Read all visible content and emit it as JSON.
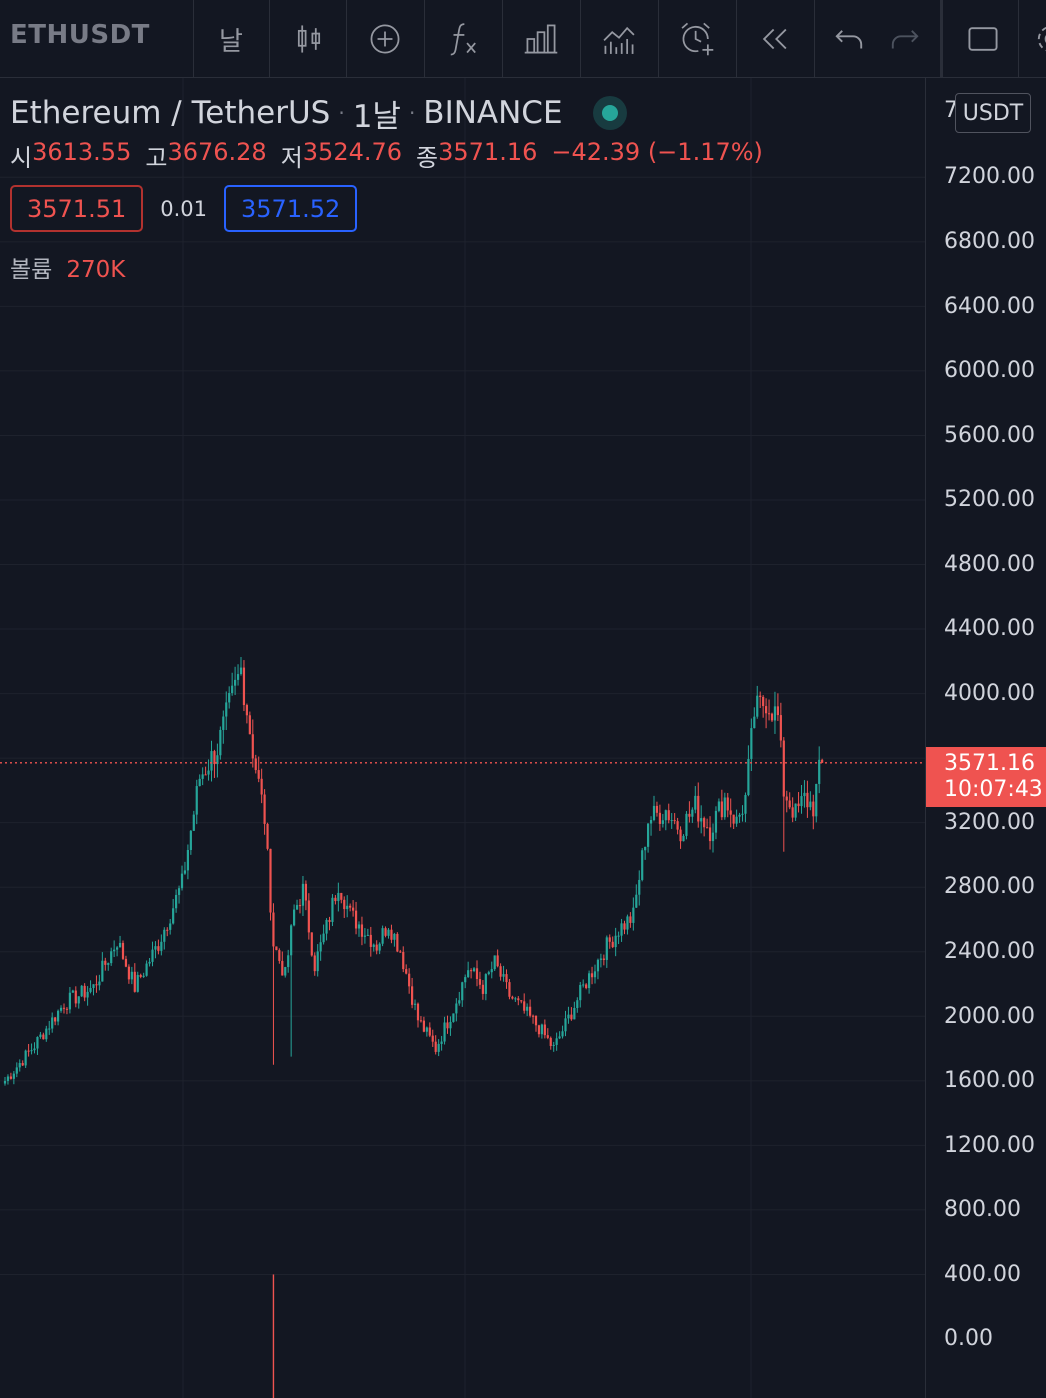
{
  "toolbar": {
    "symbol": "ETHUSDT",
    "interval": "날",
    "icons": [
      "candles-icon",
      "add-compare-icon",
      "indicators-icon",
      "templates-icon",
      "chart-type-icon",
      "alert-icon",
      "replay-icon",
      "undo-icon",
      "redo-icon",
      "fullscreen-icon",
      "settings-icon"
    ]
  },
  "legend": {
    "pair": "Ethereum / TetherUS",
    "interval": "1날",
    "exchange": "BINANCE",
    "dot": "·",
    "open_label": "시",
    "open": "3613.55",
    "high_label": "고",
    "high": "3676.28",
    "low_label": "저",
    "low": "3524.76",
    "close_label": "종",
    "close": "3571.16",
    "change": "−42.39 (−1.17%)",
    "bid": "3571.51",
    "spread": "0.01",
    "ask": "3571.52",
    "volume_label": "볼륨",
    "volume": "270K"
  },
  "axis": {
    "currency": "USDT",
    "partial_top": "7",
    "ticks": [
      "7200.00",
      "6800.00",
      "6400.00",
      "6000.00",
      "5600.00",
      "5200.00",
      "4800.00",
      "4400.00",
      "4000.00",
      "3200.00",
      "2800.00",
      "2400.00",
      "2000.00",
      "1600.00",
      "1200.00",
      "800.00",
      "400.00",
      "0.00"
    ],
    "last_price": "3571.16",
    "countdown": "10:07:43"
  },
  "colors": {
    "background": "#131722",
    "up": "#26a69a",
    "down": "#ef5350",
    "grid": "#1e222d"
  },
  "chart_data": {
    "type": "candlestick",
    "symbol": "ETHUSDT",
    "interval": "1날",
    "ylim": [
      -150,
      7600
    ],
    "last_price": 3571.16,
    "waypoints": [
      {
        "i": 0,
        "p": 1600
      },
      {
        "i": 10,
        "p": 1820
      },
      {
        "i": 20,
        "p": 2080
      },
      {
        "i": 30,
        "p": 2180
      },
      {
        "i": 38,
        "p": 2470
      },
      {
        "i": 44,
        "p": 2180
      },
      {
        "i": 52,
        "p": 2450
      },
      {
        "i": 60,
        "p": 2820
      },
      {
        "i": 66,
        "p": 3480
      },
      {
        "i": 72,
        "p": 3660
      },
      {
        "i": 76,
        "p": 3920
      },
      {
        "i": 80,
        "p": 4150
      },
      {
        "i": 84,
        "p": 3650
      },
      {
        "i": 88,
        "p": 3230
      },
      {
        "i": 91,
        "p": 2450
      },
      {
        "i": 95,
        "p": 2250
      },
      {
        "i": 98,
        "p": 2650
      },
      {
        "i": 101,
        "p": 2780
      },
      {
        "i": 105,
        "p": 2320
      },
      {
        "i": 109,
        "p": 2550
      },
      {
        "i": 113,
        "p": 2830
      },
      {
        "i": 117,
        "p": 2630
      },
      {
        "i": 121,
        "p": 2550
      },
      {
        "i": 126,
        "p": 2440
      },
      {
        "i": 130,
        "p": 2580
      },
      {
        "i": 134,
        "p": 2410
      },
      {
        "i": 140,
        "p": 1980
      },
      {
        "i": 146,
        "p": 1800
      },
      {
        "i": 152,
        "p": 2050
      },
      {
        "i": 157,
        "p": 2300
      },
      {
        "i": 162,
        "p": 2180
      },
      {
        "i": 166,
        "p": 2330
      },
      {
        "i": 171,
        "p": 2130
      },
      {
        "i": 176,
        "p": 2030
      },
      {
        "i": 181,
        "p": 1930
      },
      {
        "i": 186,
        "p": 1800
      },
      {
        "i": 190,
        "p": 1950
      },
      {
        "i": 196,
        "p": 2180
      },
      {
        "i": 202,
        "p": 2380
      },
      {
        "i": 208,
        "p": 2540
      },
      {
        "i": 213,
        "p": 2620
      },
      {
        "i": 218,
        "p": 3220
      },
      {
        "i": 224,
        "p": 3280
      },
      {
        "i": 229,
        "p": 3160
      },
      {
        "i": 234,
        "p": 3300
      },
      {
        "i": 239,
        "p": 3160
      },
      {
        "i": 244,
        "p": 3350
      },
      {
        "i": 248,
        "p": 3200
      },
      {
        "i": 251,
        "p": 3350
      },
      {
        "i": 254,
        "p": 3880
      },
      {
        "i": 258,
        "p": 3960
      },
      {
        "i": 262,
        "p": 3850
      },
      {
        "i": 264,
        "p": 3400
      },
      {
        "i": 268,
        "p": 3250
      },
      {
        "i": 271,
        "p": 3350
      },
      {
        "i": 274,
        "p": 3300
      },
      {
        "i": 277,
        "p": 3613
      }
    ],
    "special_candles": [
      {
        "i": 91,
        "low": 1700
      },
      {
        "i": 97,
        "low": 1750
      },
      {
        "i": 264,
        "low": 3020
      }
    ],
    "volume_spike": {
      "i": 91,
      "value": 400
    }
  }
}
